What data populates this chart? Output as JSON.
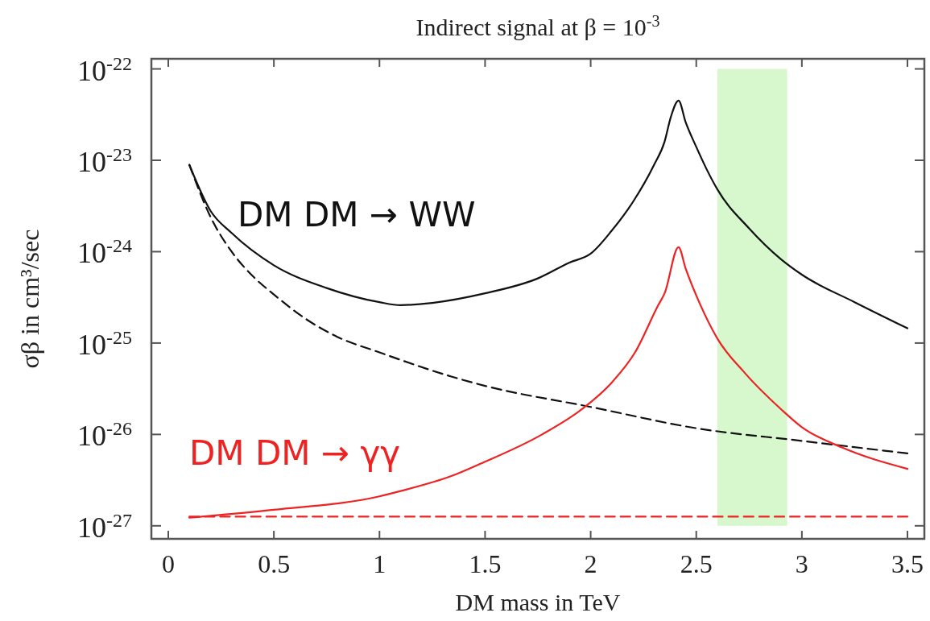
{
  "chart_data": {
    "type": "line",
    "title": "Indirect signal at β = 10$^{-3}$",
    "xlabel": "DM mass in TeV",
    "ylabel": "σβ in cm³/sec",
    "log": "y",
    "xlim": [
      -0.08,
      3.58
    ],
    "ylim": [
      7.2e-28,
      1.29e-22
    ],
    "xticks": [
      0,
      0.5,
      1,
      1.5,
      2,
      2.5,
      3,
      3.5
    ],
    "yticks": [
      {
        "value": 1e-22,
        "label": "10$^{-22}$"
      },
      {
        "value": 1e-23,
        "label": "10$^{-23}$"
      },
      {
        "value": 1e-24,
        "label": "10$^{-24}$"
      },
      {
        "value": 1e-25,
        "label": "10$^{-25}$"
      },
      {
        "value": 1e-26,
        "label": "10$^{-26}$"
      },
      {
        "value": 1e-27,
        "label": "10$^{-27}$"
      }
    ],
    "grid": false,
    "legend": false,
    "bands": [
      {
        "axis": "x",
        "from": 2.6,
        "to": 2.93,
        "color": "#d6f8cc"
      }
    ],
    "series": [
      {
        "name": "DM DM → WW",
        "color": "#111111",
        "line_style": "solid",
        "x": [
          0.1,
          0.2,
          0.3,
          0.5,
          0.75,
          1.0,
          1.1,
          1.25,
          1.5,
          1.75,
          1.9,
          2.0,
          2.1,
          2.2,
          2.3,
          2.35,
          2.38,
          2.416,
          2.45,
          2.5,
          2.55,
          2.6,
          2.75,
          2.9,
          3.0,
          3.25,
          3.5
        ],
        "values": [
          8.9e-24,
          2.8e-24,
          1.6e-24,
          7.1e-25,
          4e-25,
          2.8e-25,
          2.6e-25,
          2.75e-25,
          3.5e-25,
          5.1e-25,
          7.6e-25,
          9.5e-25,
          1.7e-24,
          3.5e-24,
          8.9e-24,
          1.6e-23,
          3e-23,
          4.5e-23,
          2.6e-23,
          1.4e-23,
          7.9e-24,
          4.8e-24,
          1.8e-24,
          8.3e-25,
          5.6e-25,
          2.8e-25,
          1.45e-25
        ]
      },
      {
        "color": "#111111",
        "line_style": "dashed",
        "x": [
          0.1,
          0.2,
          0.3,
          0.4,
          0.5,
          0.66,
          0.8,
          1.0,
          1.34,
          1.5,
          2.0,
          2.5,
          3.0,
          3.5
        ],
        "values": [
          8.9e-24,
          2.4e-24,
          1e-24,
          5.4e-25,
          3.4e-25,
          1.78e-25,
          1.17e-25,
          7.9e-26,
          4.3e-26,
          3.4e-26,
          2e-26,
          1.17e-26,
          8.5e-27,
          6.2e-27
        ]
      },
      {
        "name": "DM DM → γγ",
        "color": "#ee2222",
        "line_style": "solid",
        "x": [
          0.1,
          0.5,
          1.0,
          1.1,
          1.34,
          1.48,
          1.77,
          1.96,
          2.1,
          2.21,
          2.32,
          2.35,
          2.416,
          2.45,
          2.52,
          2.6,
          2.73,
          2.9,
          3.0,
          3.19,
          3.5
        ],
        "values": [
          1.23e-27,
          1.5e-27,
          2.1e-27,
          2.4e-27,
          3.5e-27,
          4.8e-27,
          1e-26,
          1.9e-26,
          3.7e-26,
          7.9e-26,
          2.6e-25,
          3.5e-25,
          1.12e-24,
          6.5e-25,
          2.6e-25,
          1.12e-25,
          4.7e-26,
          1.9e-26,
          1.2e-26,
          7.2e-27,
          4.2e-27
        ]
      },
      {
        "color": "#ee2222",
        "line_style": "dashed",
        "x": [
          0.1,
          3.5
        ],
        "values": [
          1.26e-27,
          1.26e-27
        ]
      }
    ]
  }
}
